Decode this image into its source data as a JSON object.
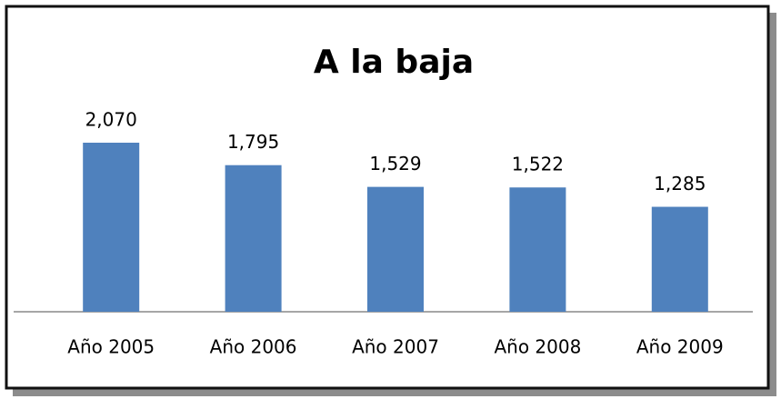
{
  "chart_data": {
    "type": "bar",
    "title": "A la baja",
    "categories": [
      "Año 2005",
      "Año 2006",
      "Año 2007",
      "Año 2008",
      "Año 2009"
    ],
    "values": [
      2070,
      1795,
      1529,
      1522,
      1285
    ],
    "value_labels": [
      "2,070",
      "1,795",
      "1,529",
      "1,522",
      "1,285"
    ],
    "color": "#4f81bd"
  }
}
